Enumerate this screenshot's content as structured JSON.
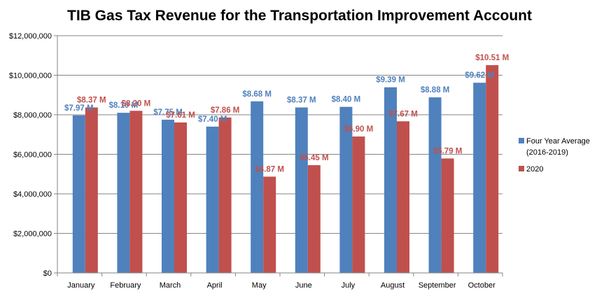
{
  "chart_data": {
    "type": "bar",
    "title": "TIB Gas Tax Revenue for the Transportation Improvement Account",
    "categories": [
      "January",
      "February",
      "March",
      "April",
      "May",
      "June",
      "July",
      "August",
      "September",
      "October"
    ],
    "series": [
      {
        "name": "Four Year Average",
        "name_line2": "(2016-2019)",
        "color": "#4F81BD",
        "label_color": "#4F81BD",
        "values": [
          7970000,
          8100000,
          7750000,
          7400000,
          8680000,
          8370000,
          8400000,
          9390000,
          8880000,
          9620000
        ],
        "labels": [
          "$7.97 M",
          "$8.10 M",
          "$7.75 M",
          "$7.40 M",
          "$8.68 M",
          "$8.37 M",
          "$8.40 M",
          "$9.39 M",
          "$8.88 M",
          "$9.62 M"
        ]
      },
      {
        "name": "2020",
        "color": "#C0504D",
        "label_color": "#C0504D",
        "values": [
          8370000,
          8200000,
          7610000,
          7860000,
          4870000,
          5450000,
          6900000,
          7670000,
          5790000,
          10510000
        ],
        "labels": [
          "$8.37 M",
          "$8.20 M",
          "$7.61 M",
          "$7.86 M",
          "$4.87 M",
          "$5.45 M",
          "$6.90 M",
          "$7.67 M",
          "$5.79 M",
          "$10.51 M"
        ]
      }
    ],
    "ylim": [
      0,
      12000000
    ],
    "yticks": [
      0,
      2000000,
      4000000,
      6000000,
      8000000,
      10000000,
      12000000
    ],
    "ytick_labels": [
      "$0",
      "$2,000,000",
      "$4,000,000",
      "$6,000,000",
      "$8,000,000",
      "$10,000,000",
      "$12,000,000"
    ],
    "grid": true,
    "legend_position": "right"
  }
}
